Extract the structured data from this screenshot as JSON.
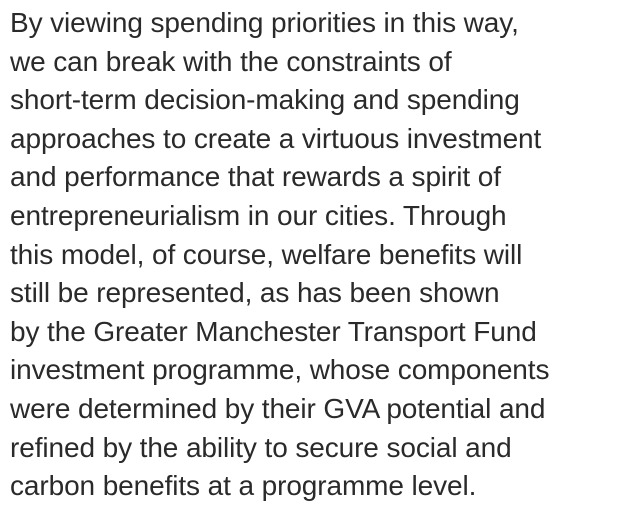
{
  "paragraph": {
    "lines": [
      "By viewing spending priorities in this way,",
      "we can break with the constraints of",
      "short-term decision-making and spending",
      "approaches to create a virtuous investment",
      "and performance that rewards a spirit of",
      "entrepreneurialism in our cities. Through",
      "this model, of course, welfare benefits will",
      "still be represented, as has been shown",
      "by the Greater Manchester Transport Fund",
      "investment programme, whose components",
      "were determined by their GVA potential and",
      "refined by the ability to secure social and",
      "carbon benefits at a programme level."
    ]
  }
}
